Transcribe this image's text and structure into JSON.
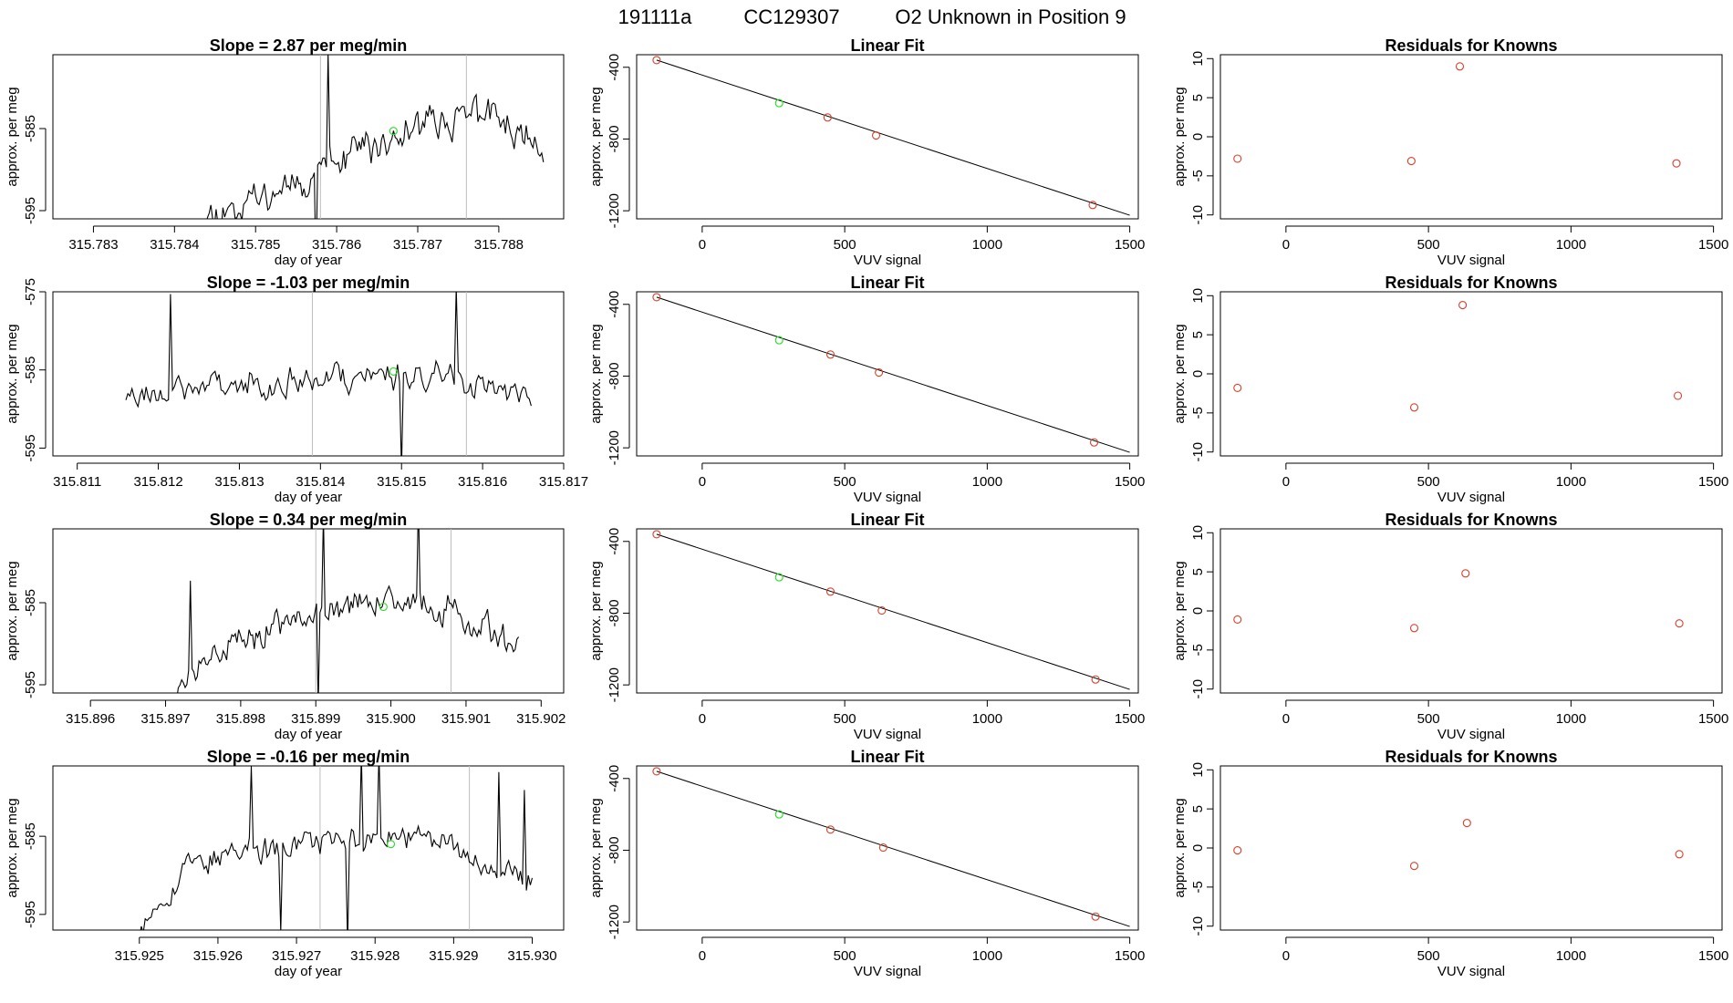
{
  "header": {
    "run_id": "191111a",
    "cylinder": "CC129307",
    "description": "O2 Unknown in Position  9"
  },
  "chart_data": [
    {
      "row": 1,
      "timeseries": {
        "type": "line",
        "title": "Slope =  2.87  per meg/min",
        "xlabel": "day of year",
        "ylabel": "approx. per meg",
        "xlim": [
          315.7825,
          315.7888
        ],
        "ylim": [
          -596,
          -576
        ],
        "xticks": [
          "315.783",
          "315.784",
          "315.785",
          "315.786",
          "315.787",
          "315.788"
        ],
        "yticks": [
          "-585",
          "-595"
        ],
        "vlines": [
          315.7858,
          315.7876
        ],
        "start": 315.7843,
        "end": 315.78855,
        "seed": 11,
        "profile": [
          [
            0,
            -596
          ],
          [
            0.1,
            -594.5
          ],
          [
            0.3,
            -591
          ],
          [
            0.5,
            -587.5
          ],
          [
            0.65,
            -584.5
          ],
          [
            0.85,
            -583
          ],
          [
            1,
            -588
          ]
        ],
        "noise": 2.6,
        "mean_point": [
          315.7867,
          -585.3
        ]
      },
      "fit": {
        "type": "line",
        "title": "Linear Fit",
        "xlabel": "VUV signal",
        "ylabel": "approx. per meg",
        "xlim": [
          -230,
          1530
        ],
        "ylim": [
          -1245,
          -330
        ],
        "xticks": [
          "0",
          "500",
          "1000",
          "1500"
        ],
        "yticks": [
          "-400",
          "-800",
          "-1200"
        ],
        "line": [
          [
            -160,
            -360
          ],
          [
            1500,
            -1225
          ]
        ],
        "known_points": [
          [
            -160,
            -360
          ],
          [
            440,
            -680
          ],
          [
            610,
            -780
          ],
          [
            1370,
            -1168
          ]
        ],
        "unknown_point": [
          270,
          -600
        ]
      },
      "residuals": {
        "type": "scatter",
        "title": "Residuals for Knowns",
        "xlabel": "VUV signal",
        "ylabel": "approx. per meg",
        "xlim": [
          -230,
          1530
        ],
        "ylim": [
          -10.5,
          10.5
        ],
        "xticks": [
          "0",
          "500",
          "1000",
          "1500"
        ],
        "yticks": [
          "10",
          "5",
          "0",
          "-5",
          "-10"
        ],
        "points": [
          [
            -170,
            -2.8
          ],
          [
            440,
            -3.1
          ],
          [
            610,
            9.0
          ],
          [
            1370,
            -3.4
          ]
        ]
      }
    },
    {
      "row": 2,
      "timeseries": {
        "type": "line",
        "title": "Slope =  -1.03  per meg/min",
        "xlabel": "day of year",
        "ylabel": "approx. per meg",
        "xlim": [
          315.8107,
          315.817
        ],
        "ylim": [
          -596,
          -575
        ],
        "xticks": [
          "315.811",
          "315.812",
          "315.813",
          "315.814",
          "315.815",
          "315.816",
          "315.817"
        ],
        "yticks": [
          "-575",
          "-585",
          "-595"
        ],
        "vlines": [
          315.8139,
          315.8158
        ],
        "start": 315.8116,
        "end": 315.8166,
        "seed": 23,
        "profile": [
          [
            0,
            -588
          ],
          [
            0.2,
            -587
          ],
          [
            0.5,
            -586
          ],
          [
            0.8,
            -585.5
          ],
          [
            1,
            -589
          ]
        ],
        "noise": 2.4,
        "mean_point": [
          315.8149,
          -585.2
        ]
      },
      "fit": {
        "type": "line",
        "title": "Linear Fit",
        "xlabel": "VUV signal",
        "ylabel": "approx. per meg",
        "xlim": [
          -230,
          1530
        ],
        "ylim": [
          -1245,
          -330
        ],
        "xticks": [
          "0",
          "500",
          "1000",
          "1500"
        ],
        "yticks": [
          "-400",
          "-800",
          "-1200"
        ],
        "line": [
          [
            -160,
            -360
          ],
          [
            1500,
            -1225
          ]
        ],
        "known_points": [
          [
            -160,
            -360
          ],
          [
            450,
            -680
          ],
          [
            620,
            -780
          ],
          [
            1375,
            -1170
          ]
        ],
        "unknown_point": [
          270,
          -600
        ]
      },
      "residuals": {
        "type": "scatter",
        "title": "Residuals for Knowns",
        "xlabel": "VUV signal",
        "ylabel": "approx. per meg",
        "xlim": [
          -230,
          1530
        ],
        "ylim": [
          -10.5,
          10.5
        ],
        "xticks": [
          "0",
          "500",
          "1000",
          "1500"
        ],
        "yticks": [
          "10",
          "5",
          "0",
          "-5",
          "-10"
        ],
        "points": [
          [
            -170,
            -1.8
          ],
          [
            450,
            -4.3
          ],
          [
            620,
            8.8
          ],
          [
            1375,
            -2.8
          ]
        ]
      }
    },
    {
      "row": 3,
      "timeseries": {
        "type": "line",
        "title": "Slope =  0.34  per meg/min",
        "xlabel": "day of year",
        "ylabel": "approx. per meg",
        "xlim": [
          315.8955,
          315.9023
        ],
        "ylim": [
          -596,
          -576
        ],
        "xticks": [
          "315.896",
          "315.897",
          "315.898",
          "315.899",
          "315.900",
          "315.901",
          "315.902"
        ],
        "yticks": [
          "-585",
          "-595"
        ],
        "vlines": [
          315.899,
          315.9008
        ],
        "start": 315.8971,
        "end": 315.9017,
        "seed": 37,
        "profile": [
          [
            0,
            -596
          ],
          [
            0.1,
            -592
          ],
          [
            0.25,
            -588.5
          ],
          [
            0.55,
            -585
          ],
          [
            0.8,
            -585.5
          ],
          [
            1,
            -590
          ]
        ],
        "noise": 2.4,
        "mean_point": [
          315.8999,
          -585.5
        ]
      },
      "fit": {
        "type": "line",
        "title": "Linear Fit",
        "xlabel": "VUV signal",
        "ylabel": "approx. per meg",
        "xlim": [
          -230,
          1530
        ],
        "ylim": [
          -1245,
          -330
        ],
        "xticks": [
          "0",
          "500",
          "1000",
          "1500"
        ],
        "yticks": [
          "-400",
          "-800",
          "-1200"
        ],
        "line": [
          [
            -160,
            -360
          ],
          [
            1500,
            -1225
          ]
        ],
        "known_points": [
          [
            -160,
            -360
          ],
          [
            450,
            -680
          ],
          [
            630,
            -785
          ],
          [
            1380,
            -1170
          ]
        ],
        "unknown_point": [
          270,
          -600
        ]
      },
      "residuals": {
        "type": "scatter",
        "title": "Residuals for Knowns",
        "xlabel": "VUV signal",
        "ylabel": "approx. per meg",
        "xlim": [
          -230,
          1530
        ],
        "ylim": [
          -10.5,
          10.5
        ],
        "xticks": [
          "0",
          "500",
          "1000",
          "1500"
        ],
        "yticks": [
          "10",
          "5",
          "0",
          "-5",
          "-10"
        ],
        "points": [
          [
            -170,
            -1.1
          ],
          [
            450,
            -2.2
          ],
          [
            630,
            4.8
          ],
          [
            1380,
            -1.6
          ]
        ]
      }
    },
    {
      "row": 4,
      "timeseries": {
        "type": "line",
        "title": "Slope =  -0.16  per meg/min",
        "xlabel": "day of year",
        "ylabel": "approx. per meg",
        "xlim": [
          315.9239,
          315.9304
        ],
        "ylim": [
          -597,
          -576
        ],
        "xticks": [
          "315.925",
          "315.926",
          "315.927",
          "315.928",
          "315.929",
          "315.930"
        ],
        "yticks": [
          "-585",
          "-595"
        ],
        "vlines": [
          315.9273,
          315.9292
        ],
        "start": 315.925,
        "end": 315.93,
        "seed": 53,
        "profile": [
          [
            0,
            -597
          ],
          [
            0.05,
            -593
          ],
          [
            0.15,
            -588
          ],
          [
            0.5,
            -585.5
          ],
          [
            0.8,
            -586
          ],
          [
            1,
            -591
          ]
        ],
        "noise": 2.3,
        "mean_point": [
          315.9282,
          -586.0
        ]
      },
      "fit": {
        "type": "line",
        "title": "Linear Fit",
        "xlabel": "VUV signal",
        "ylabel": "approx. per meg",
        "xlim": [
          -230,
          1530
        ],
        "ylim": [
          -1245,
          -330
        ],
        "xticks": [
          "0",
          "500",
          "1000",
          "1500"
        ],
        "yticks": [
          "-400",
          "-800",
          "-1200"
        ],
        "line": [
          [
            -160,
            -360
          ],
          [
            1500,
            -1225
          ]
        ],
        "known_points": [
          [
            -160,
            -360
          ],
          [
            450,
            -685
          ],
          [
            635,
            -785
          ],
          [
            1380,
            -1170
          ]
        ],
        "unknown_point": [
          270,
          -600
        ]
      },
      "residuals": {
        "type": "scatter",
        "title": "Residuals for Knowns",
        "xlabel": "VUV signal",
        "ylabel": "approx. per meg",
        "xlim": [
          -230,
          1530
        ],
        "ylim": [
          -10.5,
          10.5
        ],
        "xticks": [
          "0",
          "500",
          "1000",
          "1500"
        ],
        "yticks": [
          "10",
          "5",
          "0",
          "-5",
          "-10"
        ],
        "points": [
          [
            -170,
            -0.3
          ],
          [
            450,
            -2.3
          ],
          [
            635,
            3.2
          ],
          [
            1380,
            -0.8
          ]
        ]
      }
    }
  ]
}
